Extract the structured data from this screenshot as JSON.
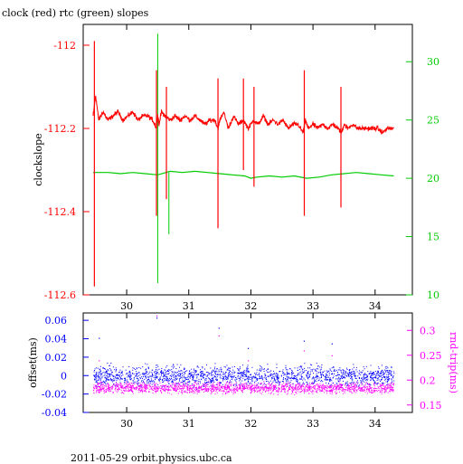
{
  "title": "clock (red) rtc (green) slopes",
  "footer": "2011-05-29  orbit.physics.ubc.ca",
  "colors": {
    "red": "#ff0000",
    "green": "#00cc00",
    "blue": "#0000ff",
    "magenta": "#ff00ff",
    "axis": "#000000"
  },
  "chart_data": [
    {
      "type": "line",
      "title": "clock (red) rtc (green) slopes",
      "x_ticks": [
        30,
        31,
        32,
        33,
        34
      ],
      "xlim": [
        29.3,
        34.6
      ],
      "ylabel": "clockslope",
      "ylim": [
        -112.6,
        -111.95
      ],
      "y_ticks": [
        "-112",
        "-112.2",
        "-112.4",
        "-112.6"
      ],
      "y_tick_values": [
        -112,
        -112.2,
        -112.4,
        -112.6
      ],
      "y2lim": [
        10,
        33.2
      ],
      "y2_ticks": [
        10,
        15,
        20,
        25,
        30
      ],
      "series": [
        {
          "color": "red",
          "axis": "left",
          "x": [
            29.46,
            29.5,
            29.55,
            29.62,
            29.7,
            29.78,
            29.86,
            29.94,
            30.02,
            30.1,
            30.18,
            30.26,
            30.34,
            30.42,
            30.48,
            30.5,
            30.52,
            30.56,
            30.62,
            30.7,
            30.78,
            30.86,
            30.94,
            31.02,
            31.1,
            31.18,
            31.26,
            31.34,
            31.42,
            31.47,
            31.5,
            31.56,
            31.64,
            31.72,
            31.8,
            31.88,
            31.96,
            32.04,
            32.12,
            32.2,
            32.28,
            32.36,
            32.44,
            32.52,
            32.6,
            32.68,
            32.76,
            32.84,
            32.88,
            32.92,
            33.0,
            33.08,
            33.16,
            33.24,
            33.32,
            33.4,
            33.46,
            33.5,
            33.56,
            33.64,
            33.72,
            33.8,
            33.88,
            33.96,
            34.04,
            34.12,
            34.2,
            34.3
          ],
          "y": [
            -112.17,
            -112.12,
            -112.18,
            -112.16,
            -112.18,
            -112.17,
            -112.16,
            -112.18,
            -112.17,
            -112.16,
            -112.18,
            -112.17,
            -112.17,
            -112.18,
            -112.2,
            -112.17,
            -112.19,
            -112.16,
            -112.17,
            -112.18,
            -112.17,
            -112.18,
            -112.17,
            -112.18,
            -112.17,
            -112.18,
            -112.19,
            -112.18,
            -112.18,
            -112.2,
            -112.18,
            -112.16,
            -112.2,
            -112.17,
            -112.19,
            -112.18,
            -112.2,
            -112.18,
            -112.19,
            -112.17,
            -112.19,
            -112.18,
            -112.19,
            -112.18,
            -112.2,
            -112.19,
            -112.19,
            -112.21,
            -112.18,
            -112.2,
            -112.19,
            -112.2,
            -112.19,
            -112.2,
            -112.19,
            -112.2,
            -112.21,
            -112.19,
            -112.2,
            -112.19,
            -112.2,
            -112.2,
            -112.2,
            -112.2,
            -112.2,
            -112.21,
            -112.2,
            -112.2
          ],
          "spikes": [
            {
              "x": 29.48,
              "y_min": -112.58,
              "y_max": -111.99
            },
            {
              "x": 30.48,
              "y_min": -112.41,
              "y_max": -112.06
            },
            {
              "x": 30.64,
              "y_min": -112.37,
              "y_max": -112.1
            },
            {
              "x": 31.47,
              "y_min": -112.44,
              "y_max": -112.08
            },
            {
              "x": 31.88,
              "y_min": -112.3,
              "y_max": -112.08
            },
            {
              "x": 32.05,
              "y_min": -112.34,
              "y_max": -112.1
            },
            {
              "x": 32.86,
              "y_min": -112.41,
              "y_max": -112.06
            },
            {
              "x": 33.45,
              "y_min": -112.39,
              "y_max": -112.1
            }
          ]
        },
        {
          "color": "green",
          "axis": "right",
          "x": [
            29.46,
            29.7,
            29.9,
            30.1,
            30.3,
            30.5,
            30.7,
            30.9,
            31.1,
            31.3,
            31.5,
            31.7,
            31.9,
            32.0,
            32.1,
            32.3,
            32.5,
            32.7,
            32.9,
            33.1,
            33.3,
            33.5,
            33.7,
            33.9,
            34.1,
            34.3
          ],
          "y": [
            20.5,
            20.5,
            20.4,
            20.5,
            20.4,
            20.3,
            20.6,
            20.5,
            20.6,
            20.5,
            20.4,
            20.3,
            20.2,
            20.0,
            20.1,
            20.2,
            20.1,
            20.2,
            20.0,
            20.1,
            20.3,
            20.4,
            20.5,
            20.4,
            20.3,
            20.2
          ],
          "spikes": [
            {
              "x": 30.5,
              "y_min": 11.0,
              "y_max": 32.4
            },
            {
              "x": 30.68,
              "y_min": 15.2,
              "y_max": 20.5
            }
          ]
        }
      ]
    },
    {
      "type": "scatter",
      "x_ticks": [
        30,
        31,
        32,
        33,
        34
      ],
      "xlim": [
        29.3,
        34.6
      ],
      "ylabel": "offset(ms)",
      "ylim": [
        -0.04,
        0.068
      ],
      "y_ticks": [
        "-0.04",
        "-0.02",
        "0",
        "0.02",
        "0.04",
        "0.06"
      ],
      "y_tick_values": [
        -0.04,
        -0.02,
        0,
        0.02,
        0.04,
        0.06
      ],
      "y2label": "rnd-trip(ms)",
      "y2lim": [
        0.135,
        0.335
      ],
      "y2_ticks": [
        "0.15",
        "0.2",
        "0.25",
        "0.3"
      ],
      "y2_tick_values": [
        0.15,
        0.2,
        0.25,
        0.3
      ],
      "series": [
        {
          "color": "blue",
          "axis": "left",
          "x_range": [
            29.46,
            34.3
          ],
          "y_center": 0.0,
          "y_spread": 0.012,
          "outliers": [
            [
              30.48,
              0.063
            ],
            [
              31.48,
              0.052
            ],
            [
              29.55,
              0.041
            ],
            [
              33.3,
              0.035
            ],
            [
              32.85,
              0.038
            ],
            [
              31.95,
              0.03
            ]
          ]
        },
        {
          "color": "magenta",
          "axis": "right",
          "x_range": [
            29.46,
            34.3
          ],
          "y_center": 0.185,
          "y_spread": 0.012,
          "outliers": [
            [
              30.48,
              0.33
            ],
            [
              31.48,
              0.29
            ],
            [
              29.55,
              0.24
            ],
            [
              33.3,
              0.25
            ],
            [
              32.85,
              0.26
            ],
            [
              31.95,
              0.24
            ]
          ]
        }
      ]
    }
  ]
}
